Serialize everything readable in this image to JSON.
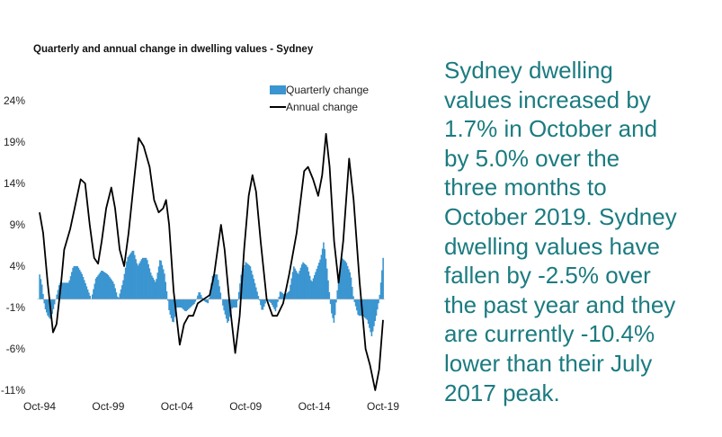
{
  "colors": {
    "bars": "#3a95d0",
    "line": "#000000",
    "commentary": "#1b7b80"
  },
  "commentary_lines": [
    "Sydney dwelling",
    "values increased by",
    "1.7% in October and",
    "by 5.0% over the",
    "three months to",
    "October 2019.  Sydney",
    "dwelling values have",
    "fallen by -2.5% over",
    "the past year and they",
    "are currently -10.4%",
    "lower than their July",
    "2017 peak."
  ],
  "chart_data": {
    "type": "bar+line",
    "title": "Quarterly and annual change in dwelling values - Sydney",
    "xlabel": "",
    "ylabel": "",
    "ylim": [
      -11,
      24
    ],
    "xlim": [
      1994.75,
      2019.75
    ],
    "y_ticks": [
      24,
      19,
      14,
      9,
      4,
      -1,
      -6,
      -11
    ],
    "y_tick_labels": [
      "24%",
      "19%",
      "14%",
      "9%",
      "4%",
      "-1%",
      "-6%",
      "-11%"
    ],
    "x_ticks": [
      1994.75,
      1999.75,
      2004.75,
      2009.75,
      2014.75,
      2019.75
    ],
    "x_tick_labels": [
      "Oct-94",
      "Oct-99",
      "Oct-04",
      "Oct-09",
      "Oct-14",
      "Oct-19"
    ],
    "grid": false,
    "legend": {
      "placement": "top-right",
      "entries": [
        "Quarterly change",
        "Annual change"
      ]
    },
    "series": [
      {
        "name": "Quarterly change",
        "kind": "bar",
        "points": [
          [
            1994.75,
            3
          ],
          [
            1994.9,
            2
          ],
          [
            1995.12,
            -1
          ],
          [
            1995.34,
            -2
          ],
          [
            1995.56,
            -2.5
          ],
          [
            1995.78,
            -1
          ],
          [
            1995.99,
            0.5
          ],
          [
            1996.21,
            2
          ],
          [
            1996.54,
            2
          ],
          [
            1996.87,
            2
          ],
          [
            1997.2,
            4
          ],
          [
            1997.52,
            4
          ],
          [
            1997.85,
            3
          ],
          [
            1998.18,
            1.5
          ],
          [
            1998.51,
            0
          ],
          [
            1998.83,
            2.5
          ],
          [
            1999.27,
            3.5
          ],
          [
            1999.71,
            3
          ],
          [
            2000.14,
            2
          ],
          [
            2000.47,
            0
          ],
          [
            2000.8,
            2
          ],
          [
            2001.13,
            5
          ],
          [
            2001.56,
            6
          ],
          [
            2001.89,
            4
          ],
          [
            2002.22,
            5
          ],
          [
            2002.54,
            5
          ],
          [
            2002.87,
            3
          ],
          [
            2003.2,
            2
          ],
          [
            2003.53,
            5
          ],
          [
            2003.85,
            3
          ],
          [
            2004.18,
            -1.5
          ],
          [
            2004.47,
            -3
          ],
          [
            2004.73,
            -1
          ],
          [
            2005.06,
            -1
          ],
          [
            2005.38,
            -1.5
          ],
          [
            2005.71,
            -1
          ],
          [
            2006.04,
            -0.5
          ],
          [
            2006.37,
            1
          ],
          [
            2006.69,
            -0.2
          ],
          [
            2007.02,
            -0.5
          ],
          [
            2007.35,
            3
          ],
          [
            2007.68,
            3
          ],
          [
            2008.11,
            -1
          ],
          [
            2008.44,
            -3
          ],
          [
            2008.77,
            -1
          ],
          [
            2009.1,
            -1
          ],
          [
            2009.42,
            3
          ],
          [
            2009.75,
            4.5
          ],
          [
            2010.08,
            4
          ],
          [
            2010.41,
            2
          ],
          [
            2010.73,
            0
          ],
          [
            2010.95,
            -1.5
          ],
          [
            2011.28,
            0
          ],
          [
            2011.61,
            -0.5
          ],
          [
            2011.93,
            -1.5
          ],
          [
            2012.26,
            1
          ],
          [
            2012.59,
            0.5
          ],
          [
            2012.92,
            1
          ],
          [
            2013.24,
            4
          ],
          [
            2013.57,
            3
          ],
          [
            2013.9,
            4.5
          ],
          [
            2014.23,
            4
          ],
          [
            2014.55,
            2
          ],
          [
            2014.88,
            3.5
          ],
          [
            2015.21,
            5
          ],
          [
            2015.43,
            7
          ],
          [
            2015.65,
            4
          ],
          [
            2015.97,
            -1.5
          ],
          [
            2016.19,
            -3
          ],
          [
            2016.41,
            1
          ],
          [
            2016.74,
            5
          ],
          [
            2017.06,
            4.5
          ],
          [
            2017.39,
            3
          ],
          [
            2017.61,
            0
          ],
          [
            2017.94,
            -2
          ],
          [
            2018.27,
            -2
          ],
          [
            2018.59,
            -2.5
          ],
          [
            2018.92,
            -4.5
          ],
          [
            2019.25,
            -2
          ],
          [
            2019.47,
            0
          ],
          [
            2019.75,
            5
          ]
        ]
      },
      {
        "name": "Annual change",
        "kind": "line",
        "points": [
          [
            1994.75,
            10.5
          ],
          [
            1995.01,
            8
          ],
          [
            1995.34,
            2
          ],
          [
            1995.73,
            -4
          ],
          [
            1995.99,
            -3
          ],
          [
            1996.32,
            2
          ],
          [
            1996.54,
            6
          ],
          [
            1996.98,
            8.5
          ],
          [
            1997.3,
            11
          ],
          [
            1997.74,
            14.5
          ],
          [
            1998.07,
            14
          ],
          [
            1998.4,
            9
          ],
          [
            1998.72,
            5
          ],
          [
            1999.01,
            4.3
          ],
          [
            1999.27,
            7
          ],
          [
            1999.6,
            11
          ],
          [
            1999.97,
            13.5
          ],
          [
            2000.25,
            11
          ],
          [
            2000.58,
            6
          ],
          [
            2000.91,
            4
          ],
          [
            2001.23,
            8
          ],
          [
            2001.67,
            15
          ],
          [
            2001.96,
            19.5
          ],
          [
            2002.33,
            18.5
          ],
          [
            2002.76,
            16
          ],
          [
            2003.09,
            12
          ],
          [
            2003.42,
            10.5
          ],
          [
            2003.75,
            11
          ],
          [
            2003.96,
            12
          ],
          [
            2004.18,
            9
          ],
          [
            2004.51,
            1
          ],
          [
            2004.95,
            -5.5
          ],
          [
            2005.27,
            -3
          ],
          [
            2005.6,
            -2
          ],
          [
            2005.93,
            -2
          ],
          [
            2006.26,
            -0.5
          ],
          [
            2006.69,
            0
          ],
          [
            2007.13,
            0.5
          ],
          [
            2007.46,
            3
          ],
          [
            2007.96,
            9
          ],
          [
            2008.22,
            6
          ],
          [
            2008.55,
            0
          ],
          [
            2008.99,
            -6.5
          ],
          [
            2009.32,
            -2
          ],
          [
            2009.64,
            6
          ],
          [
            2009.97,
            12.5
          ],
          [
            2010.25,
            15
          ],
          [
            2010.51,
            13
          ],
          [
            2010.84,
            7
          ],
          [
            2011.28,
            0
          ],
          [
            2011.71,
            -2
          ],
          [
            2012.04,
            -2
          ],
          [
            2012.48,
            -0.5
          ],
          [
            2012.92,
            3
          ],
          [
            2013.46,
            8
          ],
          [
            2014.01,
            15.5
          ],
          [
            2014.29,
            16
          ],
          [
            2014.66,
            14.5
          ],
          [
            2015.03,
            12.5
          ],
          [
            2015.32,
            15
          ],
          [
            2015.6,
            20
          ],
          [
            2015.86,
            16
          ],
          [
            2016.19,
            7
          ],
          [
            2016.52,
            2
          ],
          [
            2016.85,
            7
          ],
          [
            2017.28,
            17
          ],
          [
            2017.61,
            12
          ],
          [
            2018.05,
            2
          ],
          [
            2018.48,
            -6
          ],
          [
            2018.81,
            -8
          ],
          [
            2019.18,
            -11
          ],
          [
            2019.47,
            -8.5
          ],
          [
            2019.75,
            -2.5
          ]
        ]
      }
    ]
  }
}
